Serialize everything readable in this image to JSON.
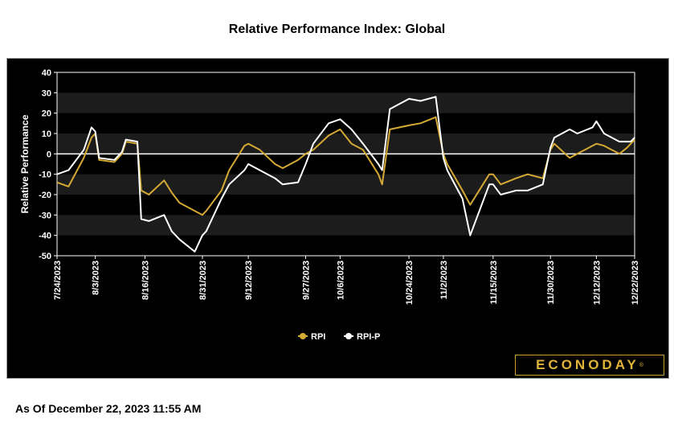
{
  "page": {
    "title": "Relative Performance Index: Global",
    "as_of": "As Of December 22, 2023 11:55 AM",
    "logo_text": "ECONODAY",
    "logo_mark": "®"
  },
  "colors": {
    "background": "#000000",
    "band": "#1c1c1c",
    "rpi": "#d4a934",
    "rpi_p": "#ffffff",
    "axis": "#ffffff"
  },
  "chart_data": {
    "type": "line",
    "title": "Relative Performance Index: Global",
    "ylabel": "Relative Performance",
    "xlabel": "",
    "ylim": [
      -50,
      40
    ],
    "yticks": [
      40,
      30,
      20,
      10,
      0,
      -10,
      -20,
      -30,
      -40,
      -50
    ],
    "x_tick_labels": [
      "7/24/2023",
      "8/3/2023",
      "8/16/2023",
      "8/31/2023",
      "9/12/2023",
      "9/27/2023",
      "10/6/2023",
      "10/24/2023",
      "11/2/2023",
      "11/15/2023",
      "11/30/2023",
      "12/12/2023",
      "12/22/2023"
    ],
    "legend_position": "bottom",
    "series": [
      {
        "name": "RPI",
        "color": "#d4a934",
        "points": [
          [
            "7/24/2023",
            -14
          ],
          [
            "7/27/2023",
            -16
          ],
          [
            "7/31/2023",
            -2
          ],
          [
            "8/2/2023",
            8
          ],
          [
            "8/3/2023",
            10
          ],
          [
            "8/4/2023",
            -3
          ],
          [
            "8/8/2023",
            -4
          ],
          [
            "8/10/2023",
            0
          ],
          [
            "8/11/2023",
            6
          ],
          [
            "8/14/2023",
            5
          ],
          [
            "8/15/2023",
            -18
          ],
          [
            "8/17/2023",
            -20
          ],
          [
            "8/21/2023",
            -13
          ],
          [
            "8/23/2023",
            -19
          ],
          [
            "8/25/2023",
            -24
          ],
          [
            "8/29/2023",
            -28
          ],
          [
            "8/31/2023",
            -30
          ],
          [
            "9/1/2023",
            -28
          ],
          [
            "9/5/2023",
            -18
          ],
          [
            "9/7/2023",
            -8
          ],
          [
            "9/11/2023",
            4
          ],
          [
            "9/12/2023",
            5
          ],
          [
            "9/15/2023",
            2
          ],
          [
            "9/19/2023",
            -5
          ],
          [
            "9/21/2023",
            -7
          ],
          [
            "9/25/2023",
            -3
          ],
          [
            "9/27/2023",
            0
          ],
          [
            "9/29/2023",
            2
          ],
          [
            "10/3/2023",
            9
          ],
          [
            "10/6/2023",
            12
          ],
          [
            "10/9/2023",
            5
          ],
          [
            "10/12/2023",
            2
          ],
          [
            "10/16/2023",
            -10
          ],
          [
            "10/17/2023",
            -15
          ],
          [
            "10/19/2023",
            12
          ],
          [
            "10/24/2023",
            14
          ],
          [
            "10/27/2023",
            15
          ],
          [
            "10/31/2023",
            18
          ],
          [
            "11/2/2023",
            0
          ],
          [
            "11/3/2023",
            -5
          ],
          [
            "11/7/2023",
            -18
          ],
          [
            "11/9/2023",
            -25
          ],
          [
            "11/14/2023",
            -10
          ],
          [
            "11/15/2023",
            -10
          ],
          [
            "11/17/2023",
            -15
          ],
          [
            "11/21/2023",
            -12
          ],
          [
            "11/24/2023",
            -10
          ],
          [
            "11/28/2023",
            -12
          ],
          [
            "11/30/2023",
            2
          ],
          [
            "12/1/2023",
            5
          ],
          [
            "12/5/2023",
            -2
          ],
          [
            "12/7/2023",
            0
          ],
          [
            "12/11/2023",
            4
          ],
          [
            "12/12/2023",
            5
          ],
          [
            "12/14/2023",
            4
          ],
          [
            "12/18/2023",
            0
          ],
          [
            "12/20/2023",
            3
          ],
          [
            "12/21/2023",
            5
          ],
          [
            "12/22/2023",
            7
          ]
        ]
      },
      {
        "name": "RPI-P",
        "color": "#ffffff",
        "points": [
          [
            "7/24/2023",
            -10
          ],
          [
            "7/27/2023",
            -8
          ],
          [
            "7/31/2023",
            2
          ],
          [
            "8/2/2023",
            13
          ],
          [
            "8/3/2023",
            11
          ],
          [
            "8/4/2023",
            -2
          ],
          [
            "8/8/2023",
            -3
          ],
          [
            "8/10/2023",
            1
          ],
          [
            "8/11/2023",
            7
          ],
          [
            "8/14/2023",
            6
          ],
          [
            "8/15/2023",
            -32
          ],
          [
            "8/17/2023",
            -33
          ],
          [
            "8/21/2023",
            -30
          ],
          [
            "8/23/2023",
            -38
          ],
          [
            "8/25/2023",
            -42
          ],
          [
            "8/29/2023",
            -48
          ],
          [
            "8/31/2023",
            -40
          ],
          [
            "9/1/2023",
            -38
          ],
          [
            "9/5/2023",
            -22
          ],
          [
            "9/7/2023",
            -15
          ],
          [
            "9/11/2023",
            -8
          ],
          [
            "9/12/2023",
            -5
          ],
          [
            "9/15/2023",
            -8
          ],
          [
            "9/19/2023",
            -12
          ],
          [
            "9/21/2023",
            -15
          ],
          [
            "9/25/2023",
            -14
          ],
          [
            "9/27/2023",
            -5
          ],
          [
            "9/29/2023",
            5
          ],
          [
            "10/3/2023",
            15
          ],
          [
            "10/6/2023",
            17
          ],
          [
            "10/9/2023",
            12
          ],
          [
            "10/12/2023",
            5
          ],
          [
            "10/16/2023",
            -5
          ],
          [
            "10/17/2023",
            -8
          ],
          [
            "10/19/2023",
            22
          ],
          [
            "10/24/2023",
            27
          ],
          [
            "10/27/2023",
            26
          ],
          [
            "10/31/2023",
            28
          ],
          [
            "11/2/2023",
            -2
          ],
          [
            "11/3/2023",
            -8
          ],
          [
            "11/7/2023",
            -22
          ],
          [
            "11/9/2023",
            -40
          ],
          [
            "11/14/2023",
            -15
          ],
          [
            "11/15/2023",
            -15
          ],
          [
            "11/17/2023",
            -20
          ],
          [
            "11/21/2023",
            -18
          ],
          [
            "11/24/2023",
            -18
          ],
          [
            "11/28/2023",
            -15
          ],
          [
            "11/30/2023",
            3
          ],
          [
            "12/1/2023",
            8
          ],
          [
            "12/5/2023",
            12
          ],
          [
            "12/7/2023",
            10
          ],
          [
            "12/11/2023",
            13
          ],
          [
            "12/12/2023",
            16
          ],
          [
            "12/14/2023",
            10
          ],
          [
            "12/18/2023",
            6
          ],
          [
            "12/20/2023",
            6
          ],
          [
            "12/21/2023",
            6
          ],
          [
            "12/22/2023",
            8
          ]
        ]
      }
    ]
  }
}
